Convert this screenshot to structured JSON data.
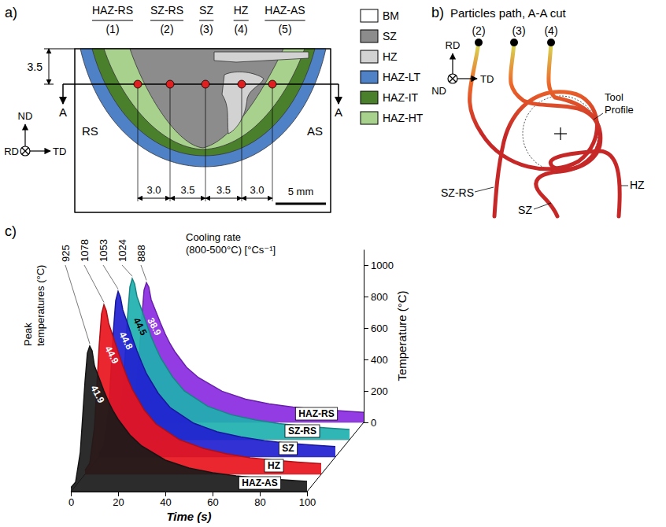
{
  "panel_a": {
    "letter": "a)",
    "points": [
      {
        "name": "HAZ-RS",
        "number": "(1)"
      },
      {
        "name": "SZ-RS",
        "number": "(2)"
      },
      {
        "name": "SZ",
        "number": "(3)"
      },
      {
        "name": "HZ",
        "number": "(4)"
      },
      {
        "name": "HAZ-AS",
        "number": "(5)"
      }
    ],
    "legend": [
      {
        "label": "BM",
        "color": "#ffffff"
      },
      {
        "label": "SZ",
        "color": "#8c8c8c"
      },
      {
        "label": "HZ",
        "color": "#d2d2d2"
      },
      {
        "label": "HAZ-LT",
        "color": "#4f81c7"
      },
      {
        "label": "HAZ-IT",
        "color": "#4a7f2c"
      },
      {
        "label": "HAZ-HT",
        "color": "#a9d18e"
      }
    ],
    "depth": "3.5",
    "spacings": [
      "3.0",
      "3.5",
      "3.5",
      "3.0"
    ],
    "scale_bar": "5 mm",
    "side_labels": {
      "left": "RS",
      "right": "AS"
    },
    "cut_label": "A",
    "axes": {
      "up": "ND",
      "right": "TD",
      "out": "RD"
    }
  },
  "panel_b": {
    "letter": "b)",
    "title": "Particles path, A-A cut",
    "paths": [
      {
        "number": "(2)",
        "label": "SZ-RS"
      },
      {
        "number": "(3)",
        "label": "SZ"
      },
      {
        "number": "(4)",
        "label": "HZ"
      }
    ],
    "tool_label": "Tool Profile",
    "axes": {
      "up": "RD",
      "right": "TD",
      "in": "ND"
    }
  },
  "chart_data": {
    "type": "line",
    "letter": "c)",
    "x_label": "Time (s)",
    "y_label": "Temperature (°C)",
    "peak_label": [
      "Peak",
      "temperatures (°C)"
    ],
    "rate_label": [
      "Cooling rate",
      "(800-500°C) [°Cs⁻¹]"
    ],
    "x": [
      0,
      2,
      4,
      6,
      7,
      8,
      9,
      10,
      12,
      14,
      16,
      18,
      20,
      25,
      30,
      40,
      50,
      60,
      70,
      80,
      90,
      100
    ],
    "xlim": [
      0,
      100
    ],
    "xticks": [
      0,
      20,
      40,
      60,
      80,
      100
    ],
    "ylim": [
      0,
      1100
    ],
    "yticks": [
      0,
      200,
      400,
      600,
      800,
      1000
    ],
    "series": [
      {
        "name": "HAZ-AS",
        "color": "#1a1a1a",
        "peak": 925,
        "cooling_rate": 41.9,
        "values": [
          25,
          60,
          250,
          700,
          880,
          925,
          895,
          800,
          720,
          640,
          570,
          510,
          460,
          360,
          290,
          200,
          150,
          120,
          100,
          85,
          75,
          65
        ]
      },
      {
        "name": "HZ",
        "color": "#e8141c",
        "peak": 1078,
        "cooling_rate": 44.9,
        "values": [
          25,
          70,
          300,
          820,
          1020,
          1078,
          1040,
          960,
          870,
          780,
          690,
          610,
          540,
          410,
          320,
          220,
          165,
          130,
          105,
          90,
          78,
          68
        ]
      },
      {
        "name": "SZ",
        "color": "#1f1fd0",
        "peak": 1053,
        "cooling_rate": 44.8,
        "values": [
          25,
          70,
          290,
          800,
          995,
          1053,
          1015,
          935,
          850,
          760,
          675,
          600,
          530,
          405,
          315,
          215,
          160,
          128,
          104,
          88,
          76,
          66
        ]
      },
      {
        "name": "SZ-RS",
        "color": "#1fb0b0",
        "peak": 1024,
        "cooling_rate": 44.5,
        "values": [
          25,
          65,
          280,
          780,
          970,
          1024,
          990,
          910,
          825,
          740,
          655,
          585,
          520,
          400,
          310,
          212,
          158,
          126,
          102,
          87,
          75,
          65
        ]
      },
      {
        "name": "HAZ-RS",
        "color": "#8a2be2",
        "peak": 888,
        "cooling_rate": 38.9,
        "values": [
          25,
          55,
          230,
          660,
          840,
          888,
          860,
          780,
          705,
          630,
          560,
          500,
          450,
          350,
          285,
          198,
          148,
          118,
          98,
          84,
          74,
          64
        ]
      }
    ]
  }
}
